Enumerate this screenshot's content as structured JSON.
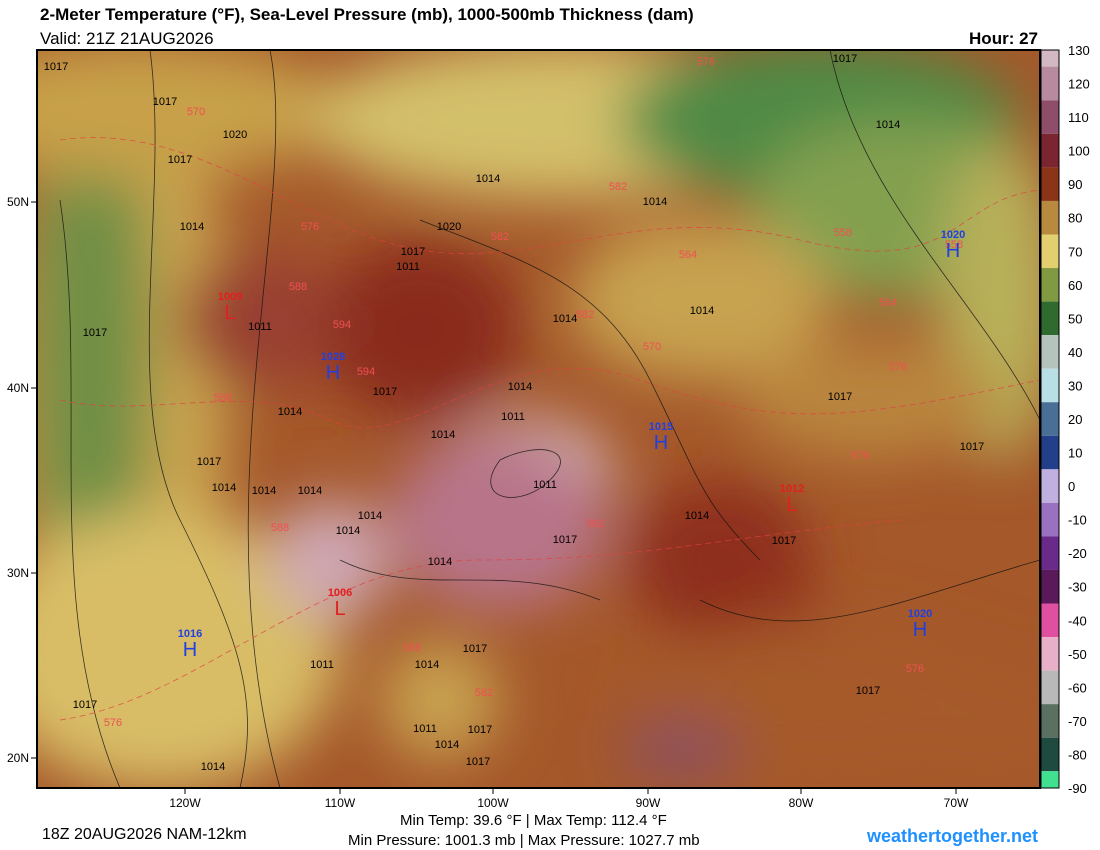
{
  "header": {
    "title": "2-Meter Temperature (°F), Sea-Level Pressure (mb), 1000-500mb Thickness (dam)",
    "valid": "Valid: 21Z 21AUG2026",
    "hour": "Hour: 27"
  },
  "map": {
    "lon_labels": [
      "120W",
      "110W",
      "100W",
      "90W",
      "80W",
      "70W"
    ],
    "lat_labels": [
      "50N",
      "40N",
      "30N",
      "20N"
    ],
    "isobar_labels": [
      "1017",
      "1017",
      "1020",
      "1017",
      "1014",
      "1014",
      "1017",
      "1014",
      "1011",
      "1017",
      "1014",
      "1011",
      "1014",
      "1017",
      "1014",
      "1014",
      "1017",
      "1014",
      "1011",
      "1014",
      "1014",
      "1011",
      "1017",
      "1014",
      "1014",
      "1014",
      "1014",
      "1017",
      "1017",
      "1017",
      "1011",
      "1017",
      "1014",
      "1014",
      "1017",
      "1014",
      "1011",
      "1017",
      "1014",
      "1017",
      "1017",
      "1014",
      "1020",
      "1017"
    ],
    "thickness_labels": [
      "570",
      "576",
      "582",
      "582",
      "576",
      "558",
      "564",
      "558",
      "564",
      "570",
      "576",
      "576",
      "588",
      "594",
      "594",
      "588",
      "588",
      "588",
      "582",
      "582",
      "582",
      "576",
      "576"
    ],
    "highs": [
      {
        "value": "1028",
        "symbol": "H"
      },
      {
        "value": "1015",
        "symbol": "H"
      },
      {
        "value": "1020",
        "symbol": "H"
      },
      {
        "value": "1020",
        "symbol": "H"
      },
      {
        "value": "1016",
        "symbol": "H"
      }
    ],
    "lows": [
      {
        "value": "1009",
        "symbol": "L"
      },
      {
        "value": "1012",
        "symbol": "L"
      },
      {
        "value": "1006",
        "symbol": "L"
      }
    ]
  },
  "colorbar": {
    "ticks": [
      130,
      120,
      110,
      100,
      90,
      80,
      70,
      60,
      50,
      40,
      30,
      20,
      10,
      0,
      -10,
      -20,
      -30,
      -40,
      -50,
      -60,
      -70,
      -80,
      -90
    ]
  },
  "footer": {
    "run": "18Z 20AUG2026 NAM-12km",
    "temps": "Min Temp:  39.6 °F | Max Temp: 112.4 °F",
    "pressures": "Min Pressure: 1001.3 mb | Max Pressure: 1027.7 mb",
    "site": "weathertogether.net"
  }
}
